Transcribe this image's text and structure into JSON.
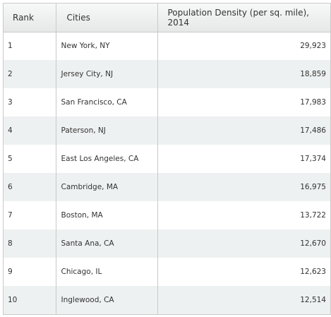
{
  "table": {
    "headers": [
      "Rank",
      "Cities",
      "Population Density (per sq. mile), 2014"
    ],
    "rows": [
      {
        "rank": "1",
        "city": "New York, NY",
        "density": "29,923"
      },
      {
        "rank": "2",
        "city": "Jersey City, NJ",
        "density": "18,859"
      },
      {
        "rank": "3",
        "city": "San Francisco, CA",
        "density": "17,983"
      },
      {
        "rank": "4",
        "city": "Paterson, NJ",
        "density": "17,486"
      },
      {
        "rank": "5",
        "city": "East Los Angeles, CA",
        "density": "17,374"
      },
      {
        "rank": "6",
        "city": "Cambridge, MA",
        "density": "16,975"
      },
      {
        "rank": "7",
        "city": "Boston, MA",
        "density": "13,722"
      },
      {
        "rank": "8",
        "city": "Santa Ana, CA",
        "density": "12,670"
      },
      {
        "rank": "9",
        "city": "Chicago, IL",
        "density": "12,623"
      },
      {
        "rank": "10",
        "city": "Inglewood, CA",
        "density": "12,514"
      }
    ]
  }
}
